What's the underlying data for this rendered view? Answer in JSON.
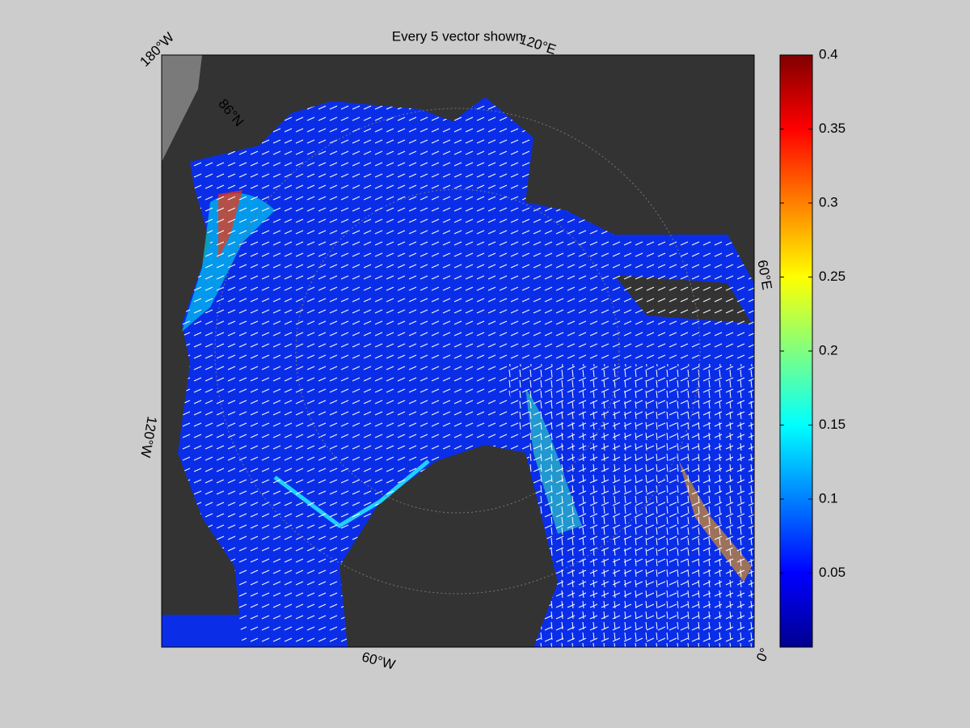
{
  "chart_data": {
    "type": "map",
    "title": "Every 5 vector shown",
    "map_labels": [
      "180°W",
      "120°E",
      "60°E",
      "0°",
      "60°W",
      "120°W",
      "86°N"
    ],
    "colorbar": {
      "lim": [
        0,
        0.4
      ],
      "ticks": [
        0.05,
        0.1,
        0.15,
        0.2,
        0.25,
        0.3,
        0.35,
        0.4
      ],
      "colormap": [
        "#00008f",
        "#0000ff",
        "#0080ff",
        "#00ffff",
        "#80ff80",
        "#ffff00",
        "#ff8000",
        "#ff0000",
        "#800000"
      ]
    }
  }
}
